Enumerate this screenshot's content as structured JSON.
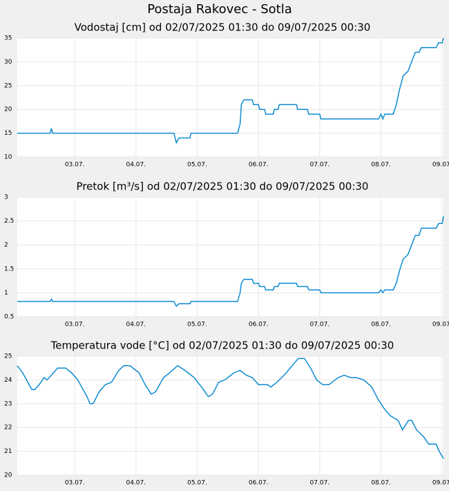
{
  "title": "Postaja Rakovec - Sotla",
  "chart_data": [
    {
      "type": "line",
      "title": "Vodostaj [cm] od 02/07/2025 01:30 do 09/07/2025 00:30",
      "color": "#0a8ad0",
      "grid": true,
      "xlim": [
        2.0625,
        9.02
      ],
      "ylim": [
        10,
        35
      ],
      "yticks": [
        10,
        15,
        20,
        25,
        30,
        35
      ],
      "xticks": [
        {
          "value": 3,
          "label": "03.07."
        },
        {
          "value": 4,
          "label": "04.07."
        },
        {
          "value": 5,
          "label": "05.07."
        },
        {
          "value": 6,
          "label": "06.07."
        },
        {
          "value": 7,
          "label": "07.07."
        },
        {
          "value": 8,
          "label": "08.07."
        },
        {
          "value": 9,
          "label": "09.07."
        }
      ],
      "x": [
        2.0625,
        2.6,
        2.62,
        2.64,
        4.62,
        4.66,
        4.7,
        4.88,
        4.9,
        5.66,
        5.7,
        5.72,
        5.76,
        5.9,
        5.92,
        6.0,
        6.02,
        6.1,
        6.12,
        6.24,
        6.26,
        6.32,
        6.34,
        6.62,
        6.64,
        6.8,
        6.82,
        7.0,
        7.02,
        7.96,
        8.0,
        8.03,
        8.06,
        8.2,
        8.25,
        8.3,
        8.36,
        8.44,
        8.5,
        8.56,
        8.62,
        8.66,
        8.9,
        8.94,
        9.0,
        9.02
      ],
      "values": [
        15,
        15,
        16,
        15,
        15,
        13,
        14,
        14,
        15,
        15,
        17,
        21,
        22,
        22,
        21,
        21,
        20,
        20,
        19,
        19,
        20,
        20,
        21,
        21,
        20,
        20,
        19,
        19,
        18,
        18,
        19,
        18,
        19,
        19,
        21,
        24,
        27,
        28,
        30,
        32,
        32,
        33,
        33,
        34,
        34,
        35
      ]
    },
    {
      "type": "line",
      "title": "Pretok [m³/s] od 02/07/2025 01:30 do 09/07/2025 00:30",
      "color": "#0a8ad0",
      "grid": true,
      "xlim": [
        2.0625,
        9.02
      ],
      "ylim": [
        0.5,
        3
      ],
      "yticks": [
        0.5,
        1,
        1.5,
        2,
        2.5,
        3
      ],
      "xticks": [
        {
          "value": 3,
          "label": "03.07."
        },
        {
          "value": 4,
          "label": "04.07."
        },
        {
          "value": 5,
          "label": "05.07."
        },
        {
          "value": 6,
          "label": "06.07."
        },
        {
          "value": 7,
          "label": "07.07."
        },
        {
          "value": 8,
          "label": "08.07."
        },
        {
          "value": 9,
          "label": "09.07."
        }
      ],
      "x": [
        2.0625,
        2.6,
        2.62,
        2.64,
        4.62,
        4.66,
        4.7,
        4.88,
        4.9,
        5.66,
        5.7,
        5.72,
        5.76,
        5.9,
        5.92,
        6.0,
        6.02,
        6.1,
        6.12,
        6.24,
        6.26,
        6.32,
        6.34,
        6.62,
        6.64,
        6.8,
        6.82,
        7.0,
        7.02,
        7.96,
        8.0,
        8.03,
        8.06,
        8.2,
        8.25,
        8.3,
        8.36,
        8.44,
        8.5,
        8.56,
        8.62,
        8.66,
        8.9,
        8.94,
        9.0,
        9.02
      ],
      "values": [
        0.82,
        0.82,
        0.87,
        0.82,
        0.82,
        0.72,
        0.77,
        0.77,
        0.82,
        0.82,
        1.0,
        1.2,
        1.28,
        1.28,
        1.2,
        1.2,
        1.13,
        1.13,
        1.06,
        1.06,
        1.13,
        1.13,
        1.2,
        1.2,
        1.13,
        1.13,
        1.06,
        1.06,
        1.0,
        1.0,
        1.06,
        1.0,
        1.06,
        1.06,
        1.2,
        1.45,
        1.7,
        1.8,
        2.0,
        2.2,
        2.2,
        2.35,
        2.35,
        2.45,
        2.45,
        2.6
      ]
    },
    {
      "type": "line",
      "title": "Temperatura vode [°C] od 02/07/2025 01:30 do 09/07/2025 00:30",
      "color": "#0a8ad0",
      "grid": true,
      "xlim": [
        2.0625,
        9.02
      ],
      "ylim": [
        20,
        25
      ],
      "yticks": [
        20,
        21,
        22,
        23,
        24,
        25
      ],
      "xticks": [
        {
          "value": 3,
          "label": "03.07."
        },
        {
          "value": 4,
          "label": "04.07."
        },
        {
          "value": 5,
          "label": "05.07."
        },
        {
          "value": 6,
          "label": "06.07."
        },
        {
          "value": 7,
          "label": "07.07."
        },
        {
          "value": 8,
          "label": "08.07."
        },
        {
          "value": 9,
          "label": "09.07."
        }
      ],
      "x": [
        2.0625,
        2.15,
        2.3,
        2.35,
        2.45,
        2.5,
        2.55,
        2.62,
        2.72,
        2.85,
        2.95,
        3.05,
        3.2,
        3.25,
        3.3,
        3.4,
        3.5,
        3.6,
        3.72,
        3.8,
        3.9,
        4.05,
        4.15,
        4.25,
        4.32,
        4.45,
        4.55,
        4.68,
        4.8,
        4.95,
        5.1,
        5.18,
        5.25,
        5.35,
        5.45,
        5.6,
        5.7,
        5.8,
        5.9,
        6.0,
        6.15,
        6.2,
        6.3,
        6.42,
        6.55,
        6.65,
        6.75,
        6.85,
        6.95,
        7.05,
        7.15,
        7.3,
        7.4,
        7.5,
        7.6,
        7.72,
        7.85,
        7.95,
        8.05,
        8.15,
        8.28,
        8.35,
        8.45,
        8.5,
        8.58,
        8.7,
        8.78,
        8.9,
        8.95,
        9.02
      ],
      "values": [
        24.6,
        24.3,
        23.6,
        23.6,
        23.9,
        24.1,
        24.0,
        24.2,
        24.5,
        24.5,
        24.3,
        24.0,
        23.3,
        23.0,
        23.0,
        23.5,
        23.8,
        23.9,
        24.4,
        24.6,
        24.6,
        24.3,
        23.8,
        23.4,
        23.5,
        24.1,
        24.3,
        24.6,
        24.4,
        24.1,
        23.6,
        23.3,
        23.4,
        23.9,
        24.0,
        24.3,
        24.4,
        24.2,
        24.1,
        23.8,
        23.8,
        23.7,
        23.9,
        24.2,
        24.6,
        24.9,
        24.9,
        24.5,
        24.0,
        23.8,
        23.8,
        24.1,
        24.2,
        24.1,
        24.1,
        24.0,
        23.7,
        23.2,
        22.8,
        22.5,
        22.3,
        21.9,
        22.3,
        22.3,
        21.9,
        21.6,
        21.3,
        21.3,
        21.0,
        20.7
      ]
    }
  ]
}
